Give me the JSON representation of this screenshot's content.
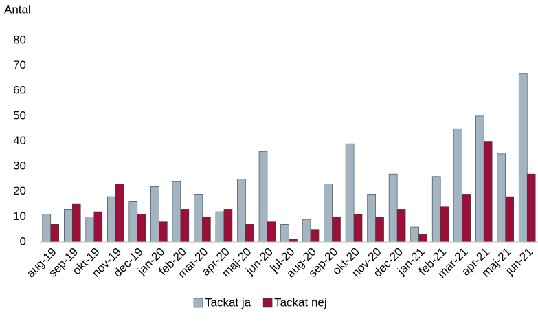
{
  "chart_data": {
    "type": "bar",
    "y_label": "Antal",
    "categories": [
      "aug-19",
      "sep-19",
      "okt-19",
      "nov-19",
      "dec-19",
      "jan-20",
      "feb-20",
      "mar-20",
      "apr-20",
      "maj-20",
      "jun-20",
      "jul-20",
      "aug-20",
      "sep-20",
      "okt-20",
      "nov-20",
      "dec-20",
      "jan-21",
      "feb-21",
      "mar-21",
      "apr-21",
      "maj-21",
      "jun-21"
    ],
    "series": [
      {
        "name": "Tackat ja",
        "color": "#a3b5c2",
        "values": [
          11,
          13,
          10,
          18,
          16,
          22,
          24,
          19,
          12,
          25,
          36,
          7,
          9,
          23,
          39,
          19,
          27,
          6,
          26,
          45,
          50,
          35,
          67
        ]
      },
      {
        "name": "Tackat nej",
        "color": "#9b1038",
        "values": [
          7,
          15,
          12,
          23,
          11,
          8,
          13,
          10,
          13,
          7,
          8,
          1,
          5,
          10,
          11,
          10,
          13,
          3,
          14,
          19,
          40,
          18,
          27
        ]
      }
    ],
    "ylim": [
      0,
      80
    ],
    "yticks": [
      0,
      10,
      20,
      30,
      40,
      50,
      60,
      70,
      80
    ],
    "grid": false,
    "legend": "bottom"
  }
}
